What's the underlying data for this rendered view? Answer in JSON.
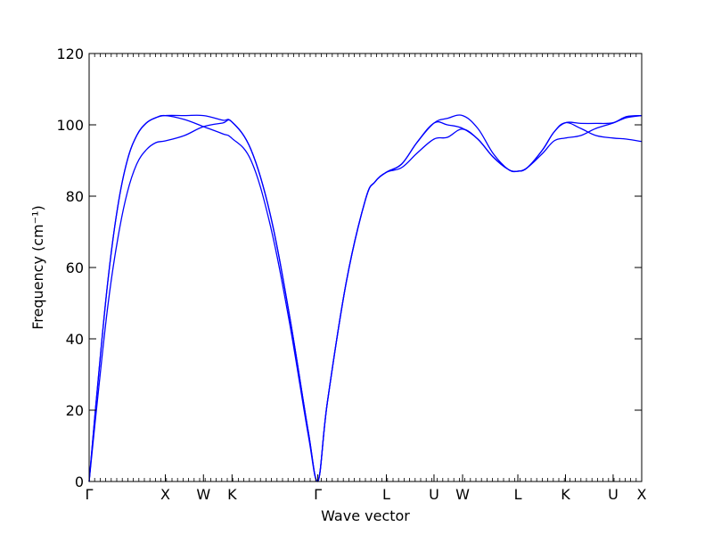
{
  "chart_data": {
    "type": "line",
    "title": "",
    "xlabel": "Wave vector",
    "ylabel": "Frequency (cm⁻¹)",
    "ylim": [
      0,
      120
    ],
    "yticks": [
      "0",
      "20",
      "40",
      "60",
      "80",
      "100",
      "120"
    ],
    "ytick_values": [
      0,
      20,
      40,
      60,
      80,
      100,
      120
    ],
    "grid": false,
    "xlim": [
      0,
      14.5
    ],
    "high_symmetry_points": [
      {
        "label": "Γ",
        "x": 0
      },
      {
        "label": "X",
        "x": 2.0
      },
      {
        "label": "W",
        "x": 3.0
      },
      {
        "label": "K",
        "x": 3.75
      },
      {
        "label": "Γ",
        "x": 6.0
      },
      {
        "label": "L",
        "x": 7.8
      },
      {
        "label": "U",
        "x": 9.05
      },
      {
        "label": "W",
        "x": 9.8
      },
      {
        "label": "L",
        "x": 11.25
      },
      {
        "label": "K",
        "x": 12.5
      },
      {
        "label": "U",
        "x": 13.75
      },
      {
        "label": "X",
        "x": 14.5
      }
    ],
    "series": [
      {
        "x": [
          0,
          0.25,
          0.5,
          0.75,
          1.0,
          1.25,
          1.5,
          1.75,
          2.0,
          2.5,
          3.0,
          3.5,
          3.75,
          4.25,
          4.75,
          5.25,
          5.75,
          6.0,
          6.25,
          6.75,
          7.25,
          7.5,
          7.8,
          8.2,
          8.6,
          9.05,
          9.4,
          9.8,
          10.2,
          10.6,
          11.0,
          11.25,
          11.5,
          11.9,
          12.2,
          12.5,
          12.9,
          13.3,
          13.75,
          14.1,
          14.5
        ],
        "values": [
          0,
          26,
          50,
          68,
          81,
          89,
          93,
          95,
          95.5,
          97,
          99.5,
          100.5,
          100.8,
          93,
          75,
          47,
          14,
          0,
          22,
          56,
          79,
          84,
          86.7,
          88,
          92,
          96,
          96.5,
          98.8,
          96,
          91,
          87.5,
          87,
          88,
          92,
          95.5,
          96.3,
          97,
          99,
          100.5,
          102,
          102.6
        ]
      },
      {
        "x": [
          0,
          0.25,
          0.5,
          0.75,
          1.0,
          1.25,
          1.5,
          1.75,
          2.0,
          2.5,
          3.0,
          3.5,
          3.75,
          4.25,
          4.75,
          5.25,
          5.75,
          6.0,
          6.25,
          6.75,
          7.25,
          7.5,
          7.8,
          8.2,
          8.6,
          9.05,
          9.4,
          9.8,
          10.2,
          10.6,
          11.0,
          11.25,
          11.5,
          11.9,
          12.2,
          12.5,
          12.9,
          13.3,
          13.75,
          14.1,
          14.5
        ],
        "values": [
          0,
          30,
          57,
          77,
          90,
          97,
          100.5,
          102,
          102.6,
          101.5,
          99.5,
          97.5,
          96.2,
          90,
          72,
          45,
          13,
          0,
          22,
          56,
          79,
          84,
          86.7,
          89,
          95,
          100.5,
          100,
          99,
          96,
          91,
          87.5,
          87,
          88,
          93,
          98,
          100.6,
          99,
          97,
          96.3,
          96,
          95.3
        ]
      },
      {
        "x": [
          0,
          0.25,
          0.5,
          0.75,
          1.0,
          1.25,
          1.5,
          1.75,
          2.0,
          2.5,
          3.0,
          3.5,
          3.75,
          4.25,
          4.75,
          5.25,
          5.75,
          6.0,
          6.25,
          6.75,
          7.25,
          7.5,
          7.8,
          8.2,
          8.6,
          9.05,
          9.4,
          9.8,
          10.2,
          10.6,
          11.0,
          11.25,
          11.5,
          11.9,
          12.2,
          12.5,
          12.9,
          13.3,
          13.75,
          14.1,
          14.5
        ],
        "values": [
          0,
          30,
          57,
          77,
          90,
          97,
          100.5,
          102,
          102.6,
          102.6,
          102.6,
          101.3,
          100.8,
          93,
          75,
          47,
          14,
          0,
          22,
          56,
          79,
          84,
          86.7,
          89,
          95,
          100.5,
          101.8,
          102.6,
          99,
          92,
          87.5,
          87,
          88,
          93,
          98,
          100.6,
          100.4,
          100.4,
          100.6,
          102.3,
          102.6
        ]
      }
    ]
  }
}
